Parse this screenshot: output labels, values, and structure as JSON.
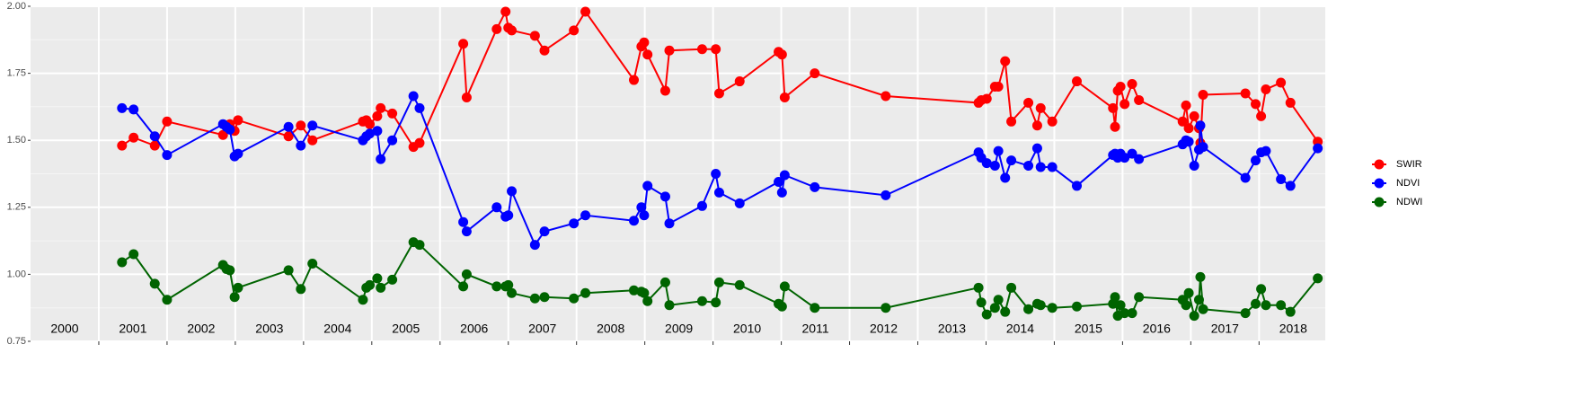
{
  "chart_data": {
    "type": "line",
    "x": [
      2001.34,
      2001.51,
      2001.82,
      2002.0,
      2002.82,
      2002.87,
      2002.92,
      2002.99,
      2003.04,
      2003.78,
      2003.96,
      2004.13,
      2004.87,
      2004.92,
      2004.97,
      2005.08,
      2005.13,
      2005.3,
      2005.61,
      2005.7,
      2006.34,
      2006.39,
      2006.83,
      2006.96,
      2007.0,
      2007.05,
      2007.39,
      2007.53,
      2007.96,
      2008.13,
      2008.84,
      2008.95,
      2008.99,
      2009.04,
      2009.3,
      2009.36,
      2009.84,
      2010.04,
      2010.09,
      2010.39,
      2010.96,
      2011.01,
      2011.05,
      2011.49,
      2012.53,
      2013.89,
      2013.93,
      2014.01,
      2014.13,
      2014.18,
      2014.28,
      2014.37,
      2014.62,
      2014.75,
      2014.8,
      2014.97,
      2015.33,
      2015.86,
      2015.89,
      2015.93,
      2015.97,
      2016.03,
      2016.14,
      2016.24,
      2016.88,
      2016.93,
      2016.97,
      2017.05,
      2017.12,
      2017.14,
      2017.18,
      2017.8,
      2017.95,
      2018.03,
      2018.1,
      2018.32,
      2018.46,
      2018.86
    ],
    "series": [
      {
        "name": "SWIR",
        "color": "#ff0000",
        "values": [
          1.48,
          1.51,
          1.48,
          1.57,
          1.52,
          1.555,
          1.56,
          1.535,
          1.575,
          1.515,
          1.555,
          1.5,
          1.57,
          1.575,
          1.56,
          1.59,
          1.62,
          1.6,
          1.475,
          1.49,
          1.86,
          1.66,
          1.915,
          1.98,
          1.92,
          1.91,
          1.89,
          1.835,
          1.91,
          1.98,
          1.725,
          1.85,
          1.865,
          1.82,
          1.685,
          1.835,
          1.84,
          1.84,
          1.675,
          1.72,
          1.83,
          1.82,
          1.66,
          1.75,
          1.665,
          1.64,
          1.65,
          1.655,
          1.7,
          1.7,
          1.795,
          1.57,
          1.64,
          1.555,
          1.62,
          1.57,
          1.72,
          1.62,
          1.55,
          1.685,
          1.7,
          1.635,
          1.71,
          1.65,
          1.57,
          1.63,
          1.545,
          1.59,
          1.545,
          1.49,
          1.67,
          1.675,
          1.635,
          1.59,
          1.69,
          1.715,
          1.64,
          1.495
        ]
      },
      {
        "name": "NDVI",
        "color": "#0000ff",
        "values": [
          1.62,
          1.615,
          1.515,
          1.445,
          1.56,
          1.55,
          1.54,
          1.44,
          1.45,
          1.55,
          1.48,
          1.555,
          1.5,
          1.515,
          1.525,
          1.535,
          1.43,
          1.5,
          1.665,
          1.62,
          1.195,
          1.16,
          1.25,
          1.215,
          1.22,
          1.31,
          1.11,
          1.16,
          1.19,
          1.22,
          1.2,
          1.25,
          1.22,
          1.33,
          1.29,
          1.19,
          1.255,
          1.375,
          1.305,
          1.265,
          1.345,
          1.305,
          1.37,
          1.325,
          1.295,
          1.455,
          1.435,
          1.415,
          1.405,
          1.46,
          1.36,
          1.425,
          1.405,
          1.47,
          1.4,
          1.4,
          1.33,
          1.445,
          1.45,
          1.435,
          1.45,
          1.435,
          1.45,
          1.43,
          1.485,
          1.5,
          1.495,
          1.405,
          1.465,
          1.555,
          1.475,
          1.36,
          1.425,
          1.455,
          1.46,
          1.355,
          1.33,
          1.47
        ]
      },
      {
        "name": "NDWI",
        "color": "#006400",
        "values": [
          1.045,
          1.075,
          0.965,
          0.905,
          1.035,
          1.02,
          1.015,
          0.915,
          0.95,
          1.015,
          0.945,
          1.04,
          0.905,
          0.95,
          0.96,
          0.985,
          0.95,
          0.98,
          1.12,
          1.11,
          0.955,
          1.0,
          0.955,
          0.955,
          0.96,
          0.93,
          0.91,
          0.915,
          0.91,
          0.93,
          0.94,
          0.935,
          0.93,
          0.9,
          0.97,
          0.885,
          0.9,
          0.895,
          0.97,
          0.96,
          0.89,
          0.88,
          0.955,
          0.875,
          0.875,
          0.95,
          0.895,
          0.85,
          0.875,
          0.905,
          0.86,
          0.95,
          0.87,
          0.89,
          0.885,
          0.875,
          0.88,
          0.89,
          0.915,
          0.845,
          0.885,
          0.855,
          0.855,
          0.915,
          0.905,
          0.885,
          0.93,
          0.845,
          0.905,
          0.99,
          0.87,
          0.855,
          0.89,
          0.945,
          0.885,
          0.885,
          0.86,
          0.985
        ]
      }
    ],
    "xlim": [
      2000,
      2018.97
    ],
    "xticks": [
      {
        "value": 2000.5,
        "label": "2000"
      },
      {
        "value": 2001.5,
        "label": "2001"
      },
      {
        "value": 2002.5,
        "label": "2002"
      },
      {
        "value": 2003.5,
        "label": "2003"
      },
      {
        "value": 2004.5,
        "label": "2004"
      },
      {
        "value": 2005.5,
        "label": "2005"
      },
      {
        "value": 2006.5,
        "label": "2006"
      },
      {
        "value": 2007.5,
        "label": "2007"
      },
      {
        "value": 2008.5,
        "label": "2008"
      },
      {
        "value": 2009.5,
        "label": "2009"
      },
      {
        "value": 2010.5,
        "label": "2010"
      },
      {
        "value": 2011.5,
        "label": "2011"
      },
      {
        "value": 2012.5,
        "label": "2012"
      },
      {
        "value": 2013.5,
        "label": "2013"
      },
      {
        "value": 2014.5,
        "label": "2014"
      },
      {
        "value": 2015.5,
        "label": "2015"
      },
      {
        "value": 2016.5,
        "label": "2016"
      },
      {
        "value": 2017.5,
        "label": "2017"
      },
      {
        "value": 2018.5,
        "label": "2018"
      }
    ],
    "xgrid": [
      2001,
      2002,
      2003,
      2004,
      2005,
      2006,
      2007,
      2008,
      2009,
      2010,
      2011,
      2012,
      2013,
      2014,
      2015,
      2016,
      2017,
      2018
    ],
    "ylim": [
      0.75,
      2.0
    ],
    "yticks": [
      {
        "value": 0.75,
        "label": "0.75"
      },
      {
        "value": 1.0,
        "label": "1.00"
      },
      {
        "value": 1.25,
        "label": "1.25"
      },
      {
        "value": 1.5,
        "label": "1.50"
      },
      {
        "value": 1.75,
        "label": "1.75"
      },
      {
        "value": 2.0,
        "label": "2.00"
      }
    ],
    "grid": true,
    "legend": "right"
  }
}
